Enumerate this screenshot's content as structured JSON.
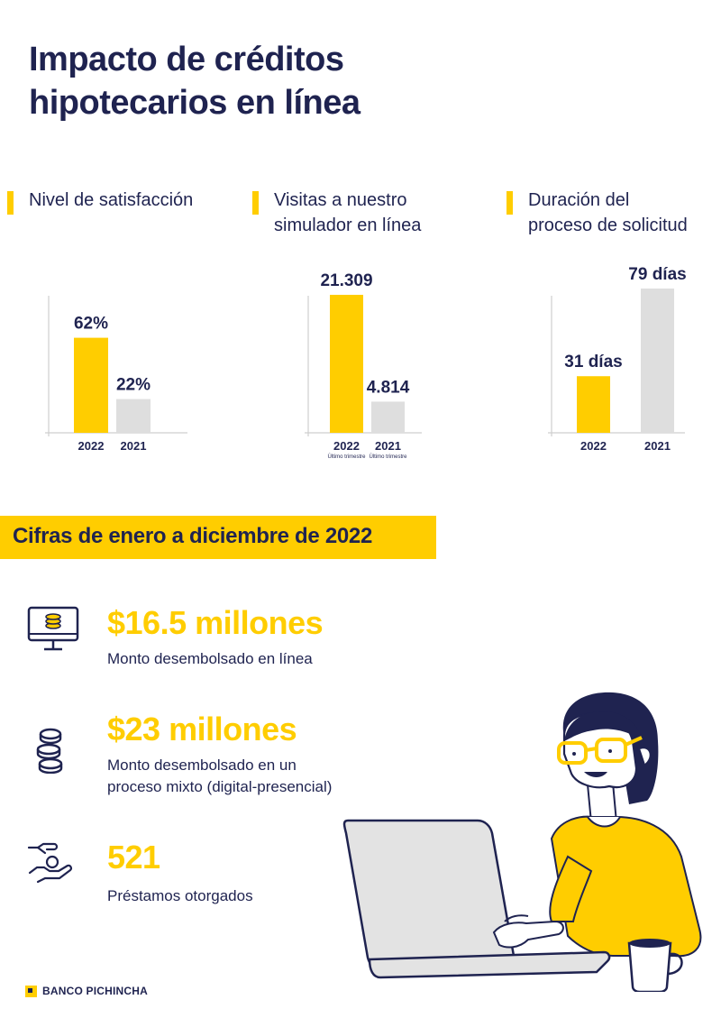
{
  "page": {
    "title_line1": "Impacto de créditos",
    "title_line2": "hipotecarios en línea"
  },
  "colors": {
    "navy": "#1f2350",
    "yellow": "#ffcd00",
    "gray_bar": "#dedede"
  },
  "metrics": [
    {
      "label_line1": "Nivel de satisfacción",
      "label_line2": ""
    },
    {
      "label_line1": "Visitas a nuestro",
      "label_line2": "simulador en línea"
    },
    {
      "label_line1": "Duración del",
      "label_line2": "proceso de solicitud"
    }
  ],
  "chart_data": [
    {
      "type": "bar",
      "title": "Nivel de satisfacción",
      "categories": [
        "2022",
        "2021"
      ],
      "values": [
        62,
        22
      ],
      "value_labels": [
        "62%",
        "22%"
      ],
      "colors": [
        "#ffcd00",
        "#dedede"
      ],
      "ylim": [
        0,
        100
      ],
      "grid": false
    },
    {
      "type": "bar",
      "title": "Visitas a nuestro simulador en línea",
      "categories": [
        "2022",
        "2021"
      ],
      "sublabels": [
        "Último trimestre",
        "Último trimestre"
      ],
      "values": [
        21309,
        4814
      ],
      "value_labels": [
        "21.309",
        "4.814"
      ],
      "colors": [
        "#ffcd00",
        "#dedede"
      ],
      "ylim": [
        0,
        22000
      ],
      "grid": false
    },
    {
      "type": "bar",
      "title": "Duración del proceso de solicitud",
      "categories": [
        "2022",
        "2021"
      ],
      "values": [
        31,
        79
      ],
      "value_labels": [
        "31 días",
        "79 días"
      ],
      "colors": [
        "#ffcd00",
        "#dedede"
      ],
      "ylim": [
        0,
        80
      ],
      "grid": false
    }
  ],
  "banner": {
    "text": "Cifras de enero a diciembre de 2022"
  },
  "stats": [
    {
      "icon": "computer-money-icon",
      "value": "$16.5 millones",
      "desc_line1": "Monto desembolsado en línea",
      "desc_line2": ""
    },
    {
      "icon": "coins-stack-icon",
      "value": "$23 millones",
      "desc_line1": "Monto desembolsado en un",
      "desc_line2": "proceso mixto (digital-presencial)"
    },
    {
      "icon": "hand-coin-icon",
      "value": "521",
      "desc_line1": "Préstamos otorgados",
      "desc_line2": ""
    }
  ],
  "brand": {
    "name": "BANCO PICHINCHA"
  }
}
